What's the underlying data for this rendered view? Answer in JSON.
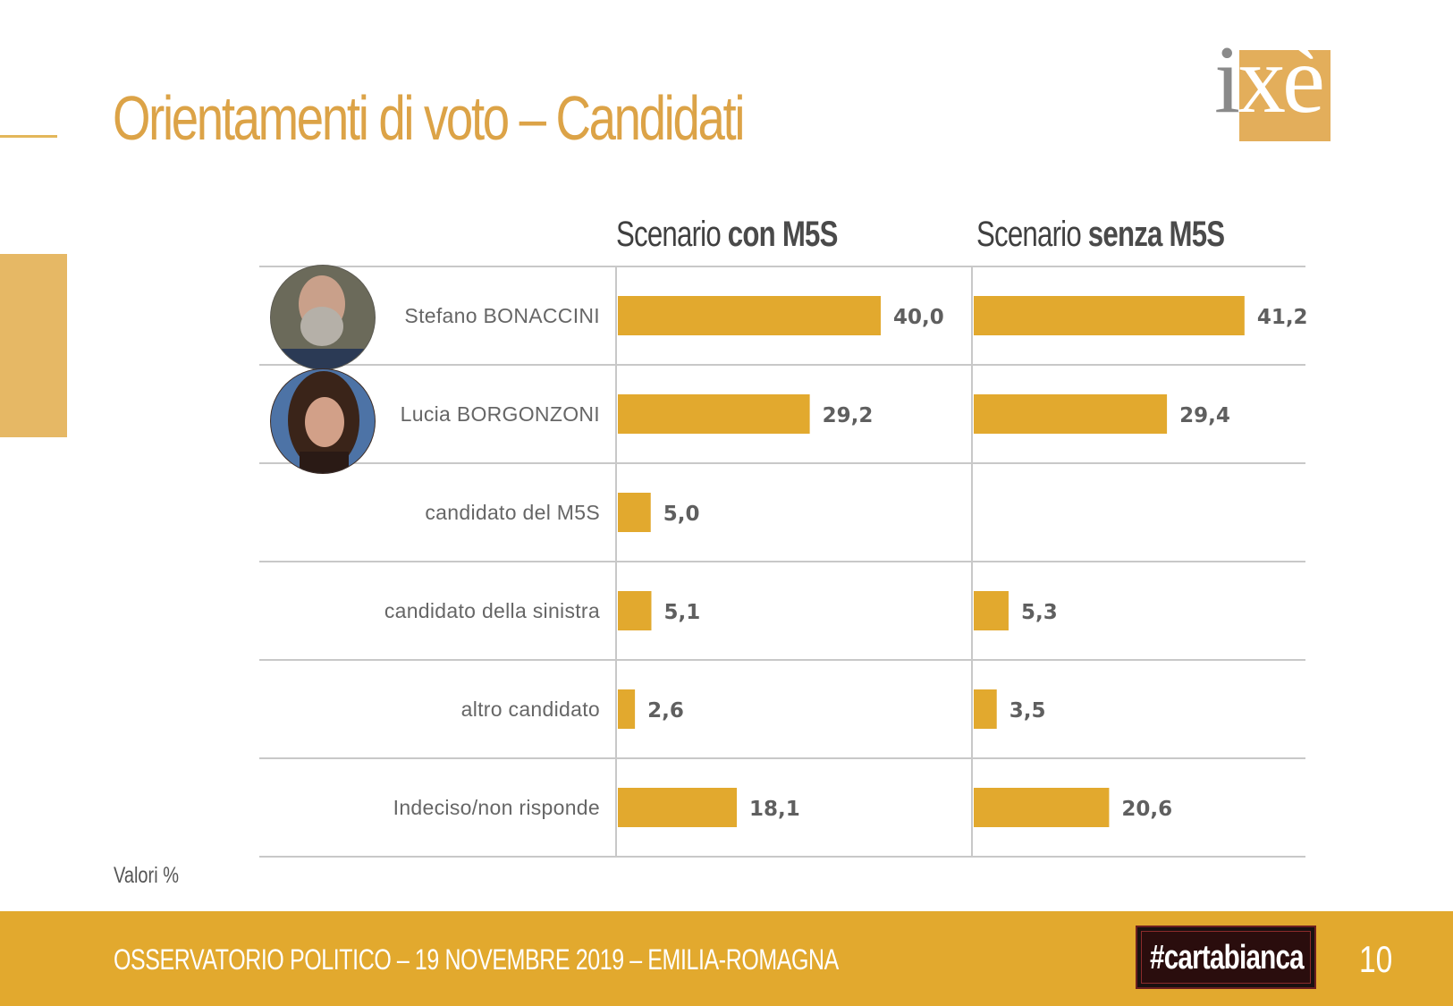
{
  "title": "Orientamenti di voto – Candidati",
  "logo_text": "ixè",
  "scenario_headers": [
    {
      "prefix": "Scenario",
      "bold": "con M5S"
    },
    {
      "prefix": "Scenario",
      "bold": "senza M5S"
    }
  ],
  "note": "Valori %",
  "footer": {
    "text": "OSSERVATORIO POLITICO – 19 NOVEMBRE 2019 – EMILIA-ROMAGNA",
    "badge": "#cartabianca",
    "page_number": "10"
  },
  "colors": {
    "bar": "#e2a92e",
    "title": "#dca347",
    "footer": "#e2a92e",
    "grid": "#c8c8c8"
  },
  "chart_data": {
    "type": "bar",
    "orientation": "horizontal",
    "categories": [
      "Stefano BONACCINI",
      "Lucia BORGONZONI",
      "candidato del M5S",
      "candidato della sinistra",
      "altro candidato",
      "Indeciso/non risponde"
    ],
    "series": [
      {
        "name": "Scenario con M5S",
        "values": [
          40.0,
          29.2,
          5.0,
          5.1,
          2.6,
          18.1
        ],
        "labels": [
          "40,0",
          "29,2",
          "5,0",
          "5,1",
          "2,6",
          "18,1"
        ]
      },
      {
        "name": "Scenario senza M5S",
        "values": [
          41.2,
          29.4,
          null,
          5.3,
          3.5,
          20.6
        ],
        "labels": [
          "41,2",
          "29,4",
          "",
          "5,3",
          "3,5",
          "20,6"
        ]
      }
    ],
    "xlim": [
      0,
      55
    ],
    "grid": true
  }
}
